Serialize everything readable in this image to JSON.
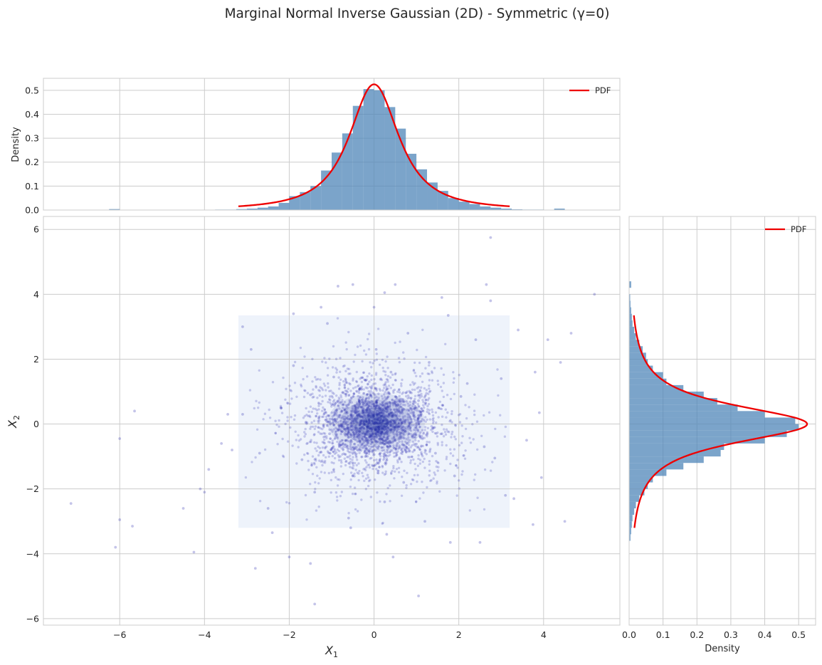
{
  "title": "Marginal Normal Inverse Gaussian (2D) - Symmetric (γ=0)",
  "colors": {
    "hist": "#4f86b8",
    "pdf": "#ee0000",
    "scatter": "#2b2bb0",
    "density_band": "#eef3fb",
    "grid": "#cccccc"
  },
  "chart_data": [
    {
      "id": "top-marginal",
      "type": "bar",
      "title": "",
      "xlabel": "",
      "ylabel": "Density",
      "xlim": [
        -7.8,
        5.8
      ],
      "ylim": [
        0,
        0.55
      ],
      "x_ticks": [
        -6,
        -4,
        -2,
        0,
        2,
        4
      ],
      "y_ticks": [
        "0.0",
        "0.1",
        "0.2",
        "0.3",
        "0.4",
        "0.5"
      ],
      "grid": true,
      "legend": {
        "position": "top-right",
        "entries": [
          "PDF"
        ]
      },
      "bin_width": 0.25,
      "bins": [
        {
          "x0": -6.25,
          "h": 0.004
        },
        {
          "x0": -3.75,
          "h": 0.002
        },
        {
          "x0": -3.5,
          "h": 0.002
        },
        {
          "x0": -3.25,
          "h": 0.004
        },
        {
          "x0": -3.0,
          "h": 0.006
        },
        {
          "x0": -2.75,
          "h": 0.01
        },
        {
          "x0": -2.5,
          "h": 0.015
        },
        {
          "x0": -2.25,
          "h": 0.03
        },
        {
          "x0": -2.0,
          "h": 0.058
        },
        {
          "x0": -1.75,
          "h": 0.075
        },
        {
          "x0": -1.5,
          "h": 0.1
        },
        {
          "x0": -1.25,
          "h": 0.165
        },
        {
          "x0": -1.0,
          "h": 0.24
        },
        {
          "x0": -0.75,
          "h": 0.32
        },
        {
          "x0": -0.5,
          "h": 0.435
        },
        {
          "x0": -0.25,
          "h": 0.505
        },
        {
          "x0": 0.0,
          "h": 0.5
        },
        {
          "x0": 0.25,
          "h": 0.43
        },
        {
          "x0": 0.5,
          "h": 0.34
        },
        {
          "x0": 0.75,
          "h": 0.235
        },
        {
          "x0": 1.0,
          "h": 0.17
        },
        {
          "x0": 1.25,
          "h": 0.115
        },
        {
          "x0": 1.5,
          "h": 0.08
        },
        {
          "x0": 1.75,
          "h": 0.05
        },
        {
          "x0": 2.0,
          "h": 0.035
        },
        {
          "x0": 2.25,
          "h": 0.025
        },
        {
          "x0": 2.5,
          "h": 0.015
        },
        {
          "x0": 2.75,
          "h": 0.01
        },
        {
          "x0": 3.0,
          "h": 0.006
        },
        {
          "x0": 3.25,
          "h": 0.003
        },
        {
          "x0": 3.5,
          "h": 0.002
        },
        {
          "x0": 3.75,
          "h": 0.002
        },
        {
          "x0": 4.25,
          "h": 0.006
        }
      ],
      "series": [
        {
          "name": "PDF",
          "type": "line",
          "x_range": [
            -3.2,
            3.2
          ],
          "peak": 0.525,
          "scale": 0.6
        }
      ]
    },
    {
      "id": "joint-scatter",
      "type": "scatter",
      "title": "",
      "xlabel": "X",
      "xlabel_sub": "1",
      "ylabel": "X",
      "ylabel_sub": "2",
      "xlim": [
        -7.8,
        5.8
      ],
      "ylim": [
        -6.2,
        6.4
      ],
      "x_ticks": [
        "−6",
        "−4",
        "−2",
        "0",
        "2",
        "4"
      ],
      "y_ticks": [
        "−6",
        "−4",
        "−2",
        "0",
        "2",
        "4",
        "6"
      ],
      "grid": true,
      "density_band": {
        "x": [
          -3.2,
          3.2
        ],
        "y": [
          -3.2,
          3.35
        ]
      },
      "points": [
        [
          -0.12,
          0.05
        ],
        [
          0.31,
          -0.22
        ],
        [
          -0.45,
          0.38
        ],
        [
          0.62,
          0.11
        ],
        [
          -0.8,
          -0.55
        ],
        [
          1.05,
          0.72
        ],
        [
          -1.3,
          0.2
        ],
        [
          0.15,
          -0.9
        ],
        [
          0.9,
          -0.4
        ],
        [
          -0.33,
          1.1
        ],
        [
          1.6,
          -0.3
        ],
        [
          -1.7,
          -1.1
        ],
        [
          0.4,
          1.6
        ],
        [
          -0.95,
          1.45
        ],
        [
          2.05,
          0.85
        ],
        [
          -2.2,
          0.5
        ],
        [
          0.7,
          -1.8
        ],
        [
          -0.5,
          -1.6
        ],
        [
          1.3,
          1.9
        ],
        [
          -1.4,
          -2.1
        ],
        [
          2.6,
          -0.7
        ],
        [
          -2.7,
          -0.9
        ],
        [
          0.05,
          2.3
        ],
        [
          0.25,
          -2.4
        ],
        [
          1.9,
          -1.6
        ],
        [
          -1.9,
          1.8
        ],
        [
          3.0,
          1.4
        ],
        [
          -3.1,
          0.3
        ],
        [
          0.8,
          2.8
        ],
        [
          -0.6,
          -2.9
        ],
        [
          2.4,
          2.6
        ],
        [
          -2.5,
          -2.6
        ],
        [
          1.2,
          -3.0
        ],
        [
          -1.1,
          3.1
        ],
        [
          3.1,
          -2.2
        ],
        [
          -2.9,
          2.3
        ],
        [
          0.0,
          3.6
        ],
        [
          0.3,
          -3.4
        ],
        [
          0.2,
          0.6
        ],
        [
          -0.25,
          -0.4
        ],
        [
          0.55,
          -0.6
        ],
        [
          -0.7,
          0.15
        ],
        [
          1.1,
          0.25
        ],
        [
          -1.05,
          -0.3
        ],
        [
          0.35,
          0.95
        ],
        [
          -0.2,
          -1.0
        ],
        [
          1.45,
          -0.9
        ],
        [
          -1.5,
          0.9
        ],
        [
          0.1,
          0.2
        ],
        [
          -0.05,
          -0.15
        ],
        [
          3.4,
          2.9
        ],
        [
          3.6,
          -0.5
        ],
        [
          3.8,
          1.6
        ],
        [
          4.5,
          -3.0
        ],
        [
          5.2,
          4.0
        ],
        [
          4.4,
          1.9
        ],
        [
          4.65,
          2.8
        ],
        [
          4.1,
          2.6
        ],
        [
          3.9,
          0.35
        ],
        [
          3.75,
          -3.1
        ],
        [
          3.95,
          -1.65
        ],
        [
          3.3,
          -2.3
        ],
        [
          2.75,
          5.75
        ],
        [
          2.65,
          4.3
        ],
        [
          2.75,
          3.8
        ],
        [
          -3.45,
          0.3
        ],
        [
          -3.35,
          -0.8
        ],
        [
          -3.6,
          -0.6
        ],
        [
          -3.9,
          -1.4
        ],
        [
          -4.0,
          -2.1
        ],
        [
          -4.1,
          -2.0
        ],
        [
          -4.25,
          -3.95
        ],
        [
          -4.5,
          -2.6
        ],
        [
          -5.65,
          0.4
        ],
        [
          -6.0,
          -0.45
        ],
        [
          -6.1,
          -3.8
        ],
        [
          -6.0,
          -2.95
        ],
        [
          -5.7,
          -3.15
        ],
        [
          -7.15,
          -2.45
        ],
        [
          -2.8,
          -4.45
        ],
        [
          -2.0,
          -4.1
        ],
        [
          -1.5,
          -4.3
        ],
        [
          -1.4,
          -5.55
        ],
        [
          1.05,
          -5.3
        ],
        [
          0.45,
          -4.1
        ],
        [
          1.8,
          -3.65
        ],
        [
          2.5,
          -3.65
        ],
        [
          -0.85,
          4.25
        ],
        [
          -0.5,
          4.3
        ],
        [
          0.25,
          4.05
        ],
        [
          0.5,
          4.3
        ],
        [
          1.6,
          3.9
        ],
        [
          -1.9,
          3.4
        ],
        [
          -1.25,
          3.6
        ],
        [
          1.75,
          3.35
        ],
        [
          -2.4,
          -3.35
        ],
        [
          -3.1,
          3.0
        ],
        [
          -0.55,
          -3.2
        ],
        [
          2.85,
          -1.05
        ],
        [
          2.2,
          1.25
        ]
      ]
    },
    {
      "id": "right-marginal",
      "type": "bar",
      "title": "",
      "xlabel": "Density",
      "ylabel": "",
      "orientation": "horizontal",
      "xlim": [
        0,
        0.55
      ],
      "ylim": [
        -6.2,
        6.4
      ],
      "x_ticks": [
        "0.0",
        "0.1",
        "0.2",
        "0.3",
        "0.4",
        "0.5"
      ],
      "grid": true,
      "legend": {
        "position": "top-right",
        "entries": [
          "PDF"
        ]
      },
      "bin_width": 0.2,
      "bins": [
        {
          "y0": 4.2,
          "w": 0.006
        },
        {
          "y0": 3.8,
          "w": 0.003
        },
        {
          "y0": 3.6,
          "w": 0.004
        },
        {
          "y0": 3.4,
          "w": 0.006
        },
        {
          "y0": 3.2,
          "w": 0.008
        },
        {
          "y0": 3.0,
          "w": 0.01
        },
        {
          "y0": 2.8,
          "w": 0.015
        },
        {
          "y0": 2.6,
          "w": 0.02
        },
        {
          "y0": 2.4,
          "w": 0.03
        },
        {
          "y0": 2.2,
          "w": 0.04
        },
        {
          "y0": 2.0,
          "w": 0.05
        },
        {
          "y0": 1.8,
          "w": 0.055
        },
        {
          "y0": 1.6,
          "w": 0.07
        },
        {
          "y0": 1.4,
          "w": 0.1
        },
        {
          "y0": 1.2,
          "w": 0.11
        },
        {
          "y0": 1.0,
          "w": 0.16
        },
        {
          "y0": 0.8,
          "w": 0.22
        },
        {
          "y0": 0.6,
          "w": 0.26
        },
        {
          "y0": 0.4,
          "w": 0.32
        },
        {
          "y0": 0.2,
          "w": 0.4
        },
        {
          "y0": 0.0,
          "w": 0.49
        },
        {
          "y0": -0.2,
          "w": 0.5
        },
        {
          "y0": -0.4,
          "w": 0.465
        },
        {
          "y0": -0.6,
          "w": 0.4
        },
        {
          "y0": -0.8,
          "w": 0.28
        },
        {
          "y0": -1.0,
          "w": 0.27
        },
        {
          "y0": -1.2,
          "w": 0.22
        },
        {
          "y0": -1.4,
          "w": 0.16
        },
        {
          "y0": -1.6,
          "w": 0.11
        },
        {
          "y0": -1.8,
          "w": 0.07
        },
        {
          "y0": -2.0,
          "w": 0.055
        },
        {
          "y0": -2.2,
          "w": 0.045
        },
        {
          "y0": -2.4,
          "w": 0.03
        },
        {
          "y0": -2.6,
          "w": 0.02
        },
        {
          "y0": -2.8,
          "w": 0.015
        },
        {
          "y0": -3.0,
          "w": 0.01
        },
        {
          "y0": -3.2,
          "w": 0.008
        },
        {
          "y0": -3.4,
          "w": 0.006
        },
        {
          "y0": -3.6,
          "w": 0.004
        }
      ],
      "series": [
        {
          "name": "PDF",
          "type": "line",
          "y_range": [
            -3.2,
            3.35
          ],
          "peak": 0.525,
          "scale": 0.6
        }
      ]
    }
  ]
}
